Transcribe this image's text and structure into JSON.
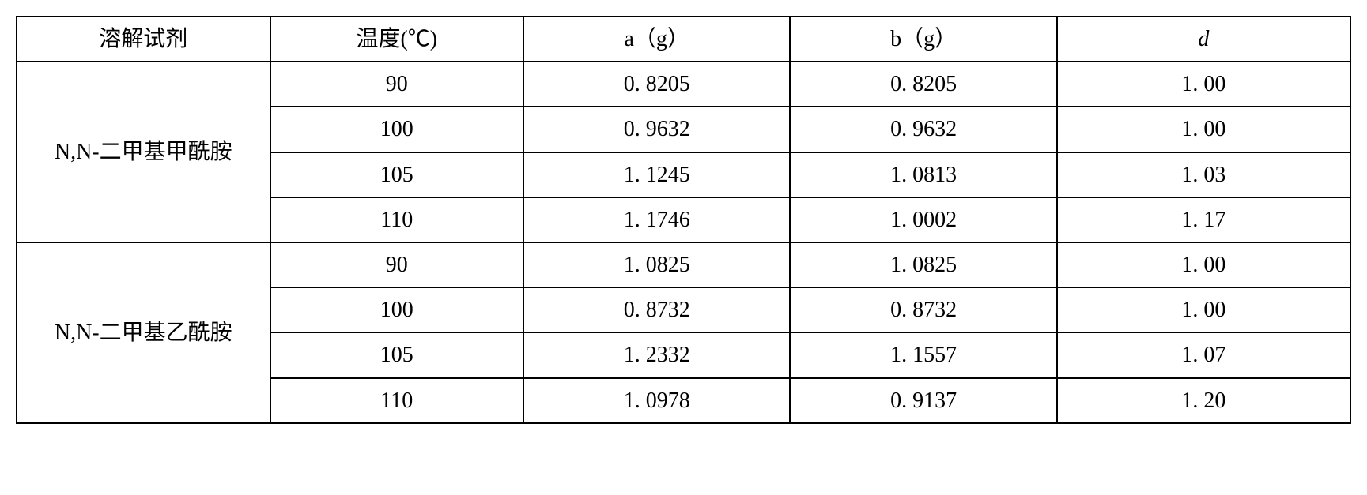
{
  "table": {
    "headers": {
      "solvent": "溶解试剂",
      "temperature": "温度(℃)",
      "a": "a（g）",
      "b": "b（g）",
      "d": "d"
    },
    "groups": [
      {
        "solvent": "N,N-二甲基甲酰胺",
        "rows": [
          {
            "temp": "90",
            "a": "0. 8205",
            "b": "0. 8205",
            "d": "1. 00"
          },
          {
            "temp": "100",
            "a": "0. 9632",
            "b": "0. 9632",
            "d": "1. 00"
          },
          {
            "temp": "105",
            "a": "1. 1245",
            "b": "1. 0813",
            "d": "1. 03"
          },
          {
            "temp": "110",
            "a": "1. 1746",
            "b": "1. 0002",
            "d": "1. 17"
          }
        ]
      },
      {
        "solvent": "N,N-二甲基乙酰胺",
        "rows": [
          {
            "temp": "90",
            "a": "1. 0825",
            "b": "1. 0825",
            "d": "1. 00"
          },
          {
            "temp": "100",
            "a": "0. 8732",
            "b": "0. 8732",
            "d": "1. 00"
          },
          {
            "temp": "105",
            "a": "1. 2332",
            "b": "1. 1557",
            "d": "1. 07"
          },
          {
            "temp": "110",
            "a": "1. 0978",
            "b": "0. 9137",
            "d": "1. 20"
          }
        ]
      }
    ]
  }
}
